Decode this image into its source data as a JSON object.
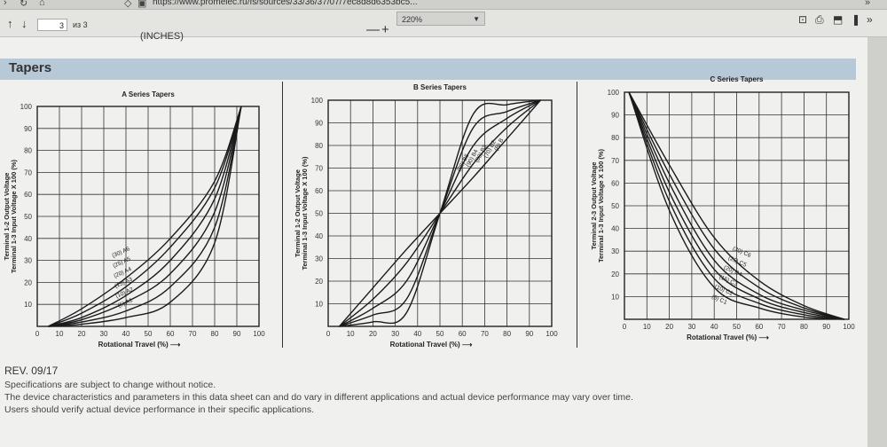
{
  "browser": {
    "url": "https://www.promelec.ru/fs/sources/33/36/37/07/7ec8d8d6353bc5..."
  },
  "toolbar": {
    "page_number": "3",
    "page_total": "из 3",
    "zoom_out": "—",
    "zoom_in": "+",
    "zoom_value": "220%"
  },
  "document": {
    "header_fragment": "(INCHES)",
    "section_title": "Tapers",
    "revision": "REV. 09/17",
    "footnotes": [
      "Specifications are subject to change without notice.",
      "The device characteristics and parameters in this data sheet can and do vary in different applications and actual device performance may vary over time.",
      "Users should verify actual device performance in their specific applications."
    ]
  },
  "chart_data": [
    {
      "type": "line",
      "title": "A Series Tapers",
      "xlabel": "Rotational Travel (%)",
      "ylabel": "Terminal 1-2 Output Voltage / Terminal 1-3 Input Voltage X 100 (%)",
      "xlim": [
        0,
        100
      ],
      "ylim": [
        0,
        100
      ],
      "grid": true,
      "x_ticks": [
        0,
        10,
        20,
        30,
        40,
        50,
        60,
        70,
        80,
        90,
        100
      ],
      "y_ticks": [
        10,
        20,
        30,
        40,
        50,
        60,
        70,
        80,
        90,
        100
      ],
      "series": [
        {
          "name": "(30) A6",
          "x": [
            5,
            20,
            40,
            60,
            80,
            92
          ],
          "y": [
            0,
            8,
            22,
            40,
            66,
            100
          ]
        },
        {
          "name": "(25) A5",
          "x": [
            5,
            20,
            40,
            60,
            80,
            92
          ],
          "y": [
            0,
            6,
            18,
            36,
            63,
            100
          ]
        },
        {
          "name": "(20) A4",
          "x": [
            5,
            20,
            40,
            60,
            80,
            92
          ],
          "y": [
            0,
            4,
            14,
            30,
            58,
            100
          ]
        },
        {
          "name": "(15) A3",
          "x": [
            5,
            20,
            40,
            60,
            80,
            92
          ],
          "y": [
            0,
            3,
            11,
            24,
            52,
            100
          ]
        },
        {
          "name": "(10) A2",
          "x": [
            5,
            20,
            40,
            60,
            80,
            92
          ],
          "y": [
            0,
            2,
            7,
            18,
            45,
            100
          ]
        },
        {
          "name": "(5) A1",
          "x": [
            5,
            20,
            40,
            60,
            80,
            92
          ],
          "y": [
            0,
            1,
            4,
            11,
            38,
            100
          ]
        }
      ]
    },
    {
      "type": "line",
      "title": "B Series Tapers",
      "xlabel": "Rotational Travel (%)",
      "ylabel": "Terminal 1-2 Output Voltage / Terminal 1-3 Input Voltage X 100 (%)",
      "xlim": [
        0,
        100
      ],
      "ylim": [
        0,
        100
      ],
      "grid": true,
      "x_ticks": [
        0,
        10,
        20,
        30,
        40,
        50,
        60,
        70,
        80,
        90,
        100
      ],
      "y_ticks": [
        10,
        20,
        30,
        40,
        50,
        60,
        70,
        80,
        90,
        100
      ],
      "series": [
        {
          "name": "(98) B5",
          "x": [
            5,
            20,
            35,
            50,
            65,
            80,
            95
          ],
          "y": [
            0,
            2,
            6,
            50,
            94,
            98,
            100
          ]
        },
        {
          "name": "(90) B4",
          "x": [
            5,
            20,
            35,
            50,
            65,
            80,
            95
          ],
          "y": [
            0,
            5,
            12,
            50,
            88,
            95,
            100
          ]
        },
        {
          "name": "(80) B3",
          "x": [
            5,
            20,
            35,
            50,
            65,
            80,
            95
          ],
          "y": [
            0,
            8,
            20,
            50,
            80,
            92,
            100
          ]
        },
        {
          "name": "(70) B2",
          "x": [
            5,
            20,
            35,
            50,
            65,
            80,
            95
          ],
          "y": [
            0,
            12,
            28,
            50,
            72,
            88,
            100
          ]
        },
        {
          "name": "(B) B",
          "x": [
            5,
            20,
            35,
            50,
            65,
            80,
            95
          ],
          "y": [
            0,
            17,
            34,
            50,
            66,
            83,
            100
          ]
        }
      ]
    },
    {
      "type": "line",
      "title": "C Series Tapers",
      "xlabel": "Rotational Travel (%)",
      "ylabel": "Terminal 2-3 Output Voltage / Terminal 1-3 Input Voltage X 100 (%)",
      "xlim": [
        0,
        100
      ],
      "ylim": [
        0,
        100
      ],
      "grid": true,
      "x_ticks": [
        0,
        10,
        20,
        30,
        40,
        50,
        60,
        70,
        80,
        90,
        100
      ],
      "y_ticks": [
        10,
        20,
        30,
        40,
        50,
        60,
        70,
        80,
        90,
        100
      ],
      "series": [
        {
          "name": "(30) C6",
          "x": [
            2,
            20,
            40,
            60,
            80,
            98
          ],
          "y": [
            100,
            68,
            36,
            17,
            6,
            0
          ]
        },
        {
          "name": "(25) C5",
          "x": [
            2,
            20,
            40,
            60,
            80,
            98
          ],
          "y": [
            100,
            64,
            31,
            14,
            5,
            0
          ]
        },
        {
          "name": "(20) C4",
          "x": [
            2,
            20,
            40,
            60,
            80,
            98
          ],
          "y": [
            100,
            60,
            26,
            11,
            4,
            0
          ]
        },
        {
          "name": "(15) C3",
          "x": [
            2,
            20,
            40,
            60,
            80,
            98
          ],
          "y": [
            100,
            56,
            22,
            9,
            3,
            0
          ]
        },
        {
          "name": "(10) C2",
          "x": [
            2,
            20,
            40,
            60,
            80,
            98
          ],
          "y": [
            100,
            52,
            18,
            7,
            2,
            0
          ]
        },
        {
          "name": "(5) C1",
          "x": [
            2,
            20,
            40,
            60,
            80,
            98
          ],
          "y": [
            100,
            48,
            14,
            5,
            1,
            0
          ]
        }
      ]
    }
  ]
}
